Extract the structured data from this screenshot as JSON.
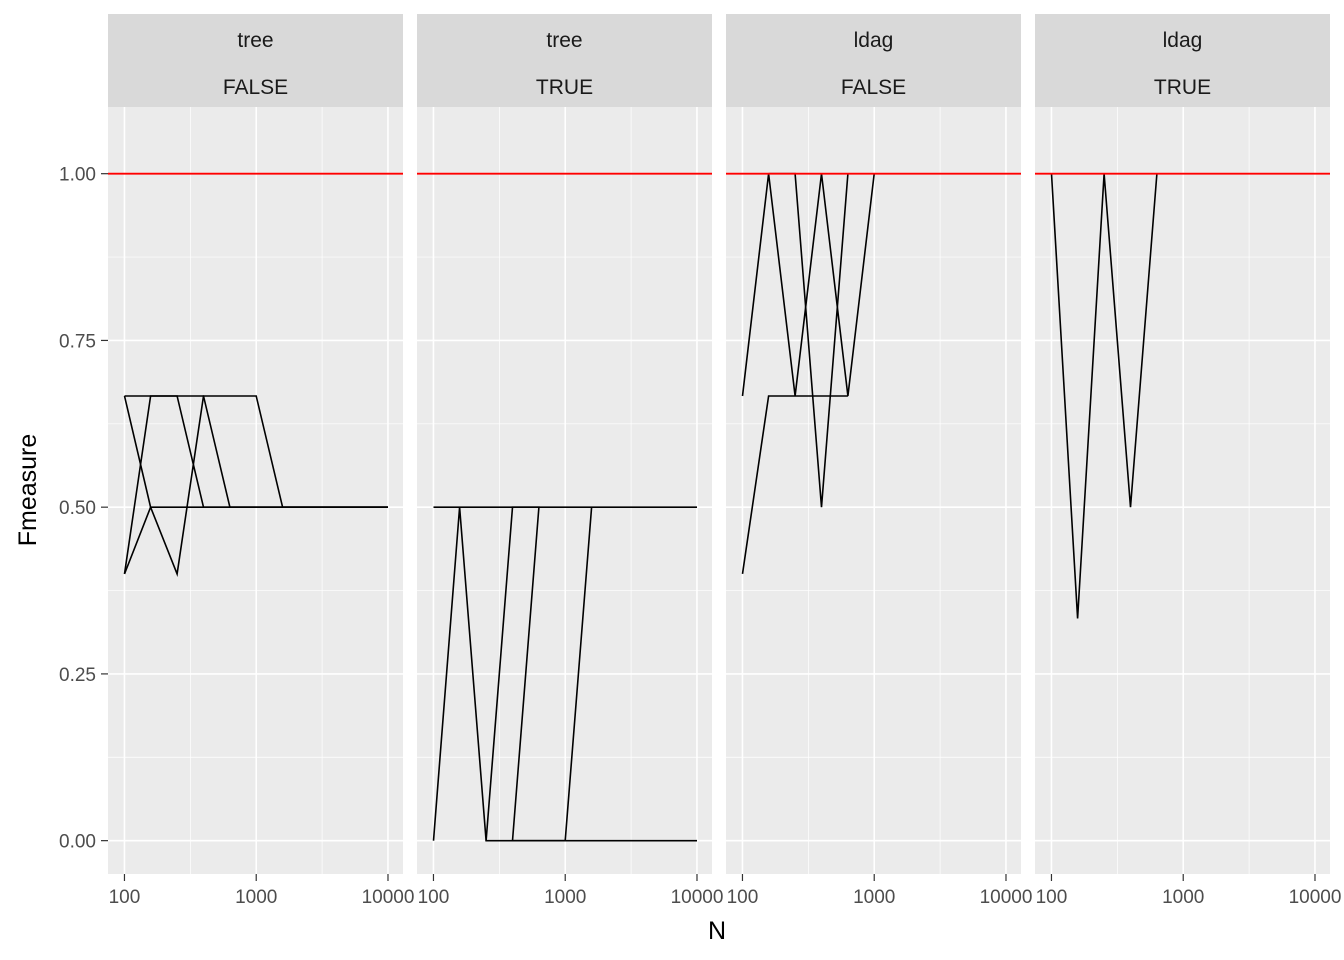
{
  "chart_data": {
    "type": "line",
    "xlabel": "N",
    "ylabel": "Fmeasure",
    "x_scale": "log10",
    "xlim": [
      75,
      13000
    ],
    "ylim": [
      -0.05,
      1.1
    ],
    "x_ticks": [
      100,
      1000,
      10000
    ],
    "x_tick_labels": [
      "100",
      "1000",
      "10000"
    ],
    "y_ticks": [
      0,
      0.25,
      0.5,
      0.75,
      1
    ],
    "y_tick_labels": [
      "0.00",
      "0.25",
      "0.50",
      "0.75",
      "1.00"
    ],
    "grid": true,
    "legend": "none",
    "reference_line": {
      "y": 1.0,
      "color": "#ff0000"
    },
    "colors": {
      "panel_bg": "#ebebeb",
      "strip_bg": "#d9d9d9",
      "grid": "#ffffff",
      "line": "#000000"
    },
    "panels": [
      {
        "strip": [
          "tree",
          "FALSE"
        ],
        "series": [
          {
            "x": [
              100,
              158,
              10000
            ],
            "y": [
              0.4,
              0.5,
              0.5
            ]
          },
          {
            "x": [
              100,
              158,
              251,
              398,
              10000
            ],
            "y": [
              0.4,
              0.6667,
              0.6667,
              0.5,
              0.5
            ]
          },
          {
            "x": [
              100,
              398,
              631,
              10000
            ],
            "y": [
              0.6667,
              0.6667,
              0.5,
              0.5
            ]
          },
          {
            "x": [
              100,
              158,
              251,
              398,
              1000,
              1585,
              10000
            ],
            "y": [
              0.6667,
              0.5,
              0.4,
              0.6667,
              0.6667,
              0.5,
              0.5
            ]
          }
        ]
      },
      {
        "strip": [
          "tree",
          "TRUE"
        ],
        "series": [
          {
            "x": [
              100,
              158,
              251,
              10000
            ],
            "y": [
              0,
              0.5,
              0,
              0
            ]
          },
          {
            "x": [
              100,
              10000
            ],
            "y": [
              0.5,
              0.5
            ]
          },
          {
            "x": [
              251,
              398,
              631,
              398,
              1000,
              1585
            ],
            "y": [
              0,
              0.5,
              0.5,
              0,
              0,
              0.5
            ]
          }
        ]
      },
      {
        "strip": [
          "ldag",
          "FALSE"
        ],
        "series": [
          {
            "x": [
              100,
              158,
              251,
              398,
              631,
              1000
            ],
            "y": [
              0.6667,
              1.0,
              0.6667,
              1.0,
              0.6667,
              1.0
            ]
          },
          {
            "x": [
              100,
              158,
              631
            ],
            "y": [
              0.4,
              0.6667,
              0.6667
            ]
          },
          {
            "x": [
              158,
              251,
              398,
              631
            ],
            "y": [
              1.0,
              1.0,
              0.5,
              1.0
            ]
          }
        ]
      },
      {
        "strip": [
          "ldag",
          "TRUE"
        ],
        "series": [
          {
            "x": [
              100,
              158,
              251,
              398,
              631
            ],
            "y": [
              1.0,
              0.3333,
              1.0,
              0.5,
              1.0
            ]
          }
        ]
      }
    ]
  }
}
